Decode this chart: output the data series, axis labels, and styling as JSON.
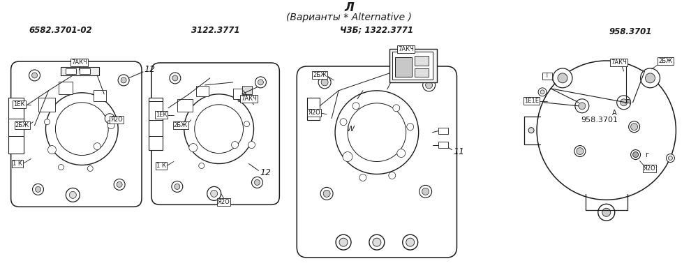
{
  "title_top": "Л",
  "title_sub": "(Варианты * Alternative )",
  "label1": "6582.3701-02",
  "label2": "3122.3771",
  "label3": "Ч3Б; 1322.3771",
  "label4": "958.3701",
  "label_center4": "958.3701",
  "num12_1": "12",
  "num12_2": "12",
  "num11": "11",
  "tag_7AK_1": "7АКЧ",
  "tag_1EK_1": "1ЕК",
  "tag_2BJ_1": "2БЖ",
  "tag_R2O_1": "Я2О",
  "tag_1K_1": "1 К",
  "tag_1EK_2": "1ЕК",
  "tag_7AK_2": "7АКЧ",
  "tag_2BJ_2": "2БЖ",
  "tag_1K_2": "1 К",
  "tag_R2O_2": "Я2О",
  "tag_2BJ_3": "2БЖ",
  "tag_7AK_3": "7АКЧ",
  "tag_R2O_3": "Я2О",
  "tag_1E1E_4": "1Е1Е",
  "tag_7AK_4": "7АКЧ",
  "tag_2BJ_4": "2БЖ",
  "tag_R2O_4": "Я2О",
  "tag_W": "W",
  "tag_d": "д",
  "tag_g": "г",
  "tag_A": "А",
  "bg_color": "#ffffff",
  "line_color": "#1a1a1a",
  "box_fill": "#ffffff",
  "title_fontsize": 12,
  "sub_fontsize": 10,
  "label_fontsize": 8.5,
  "tag_fontsize": 6.0,
  "num_fontsize": 9
}
